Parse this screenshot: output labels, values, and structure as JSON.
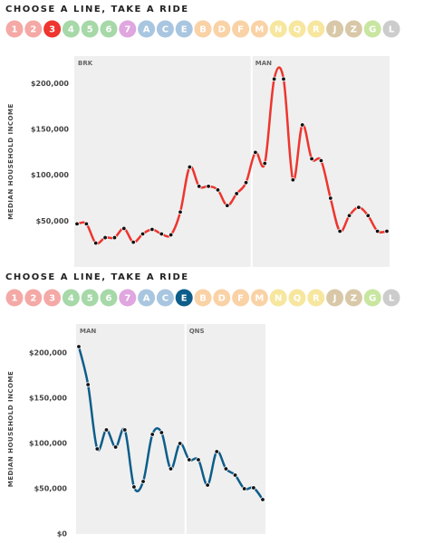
{
  "pickers": [
    {
      "title": "CHOOSE A LINE, TAKE A RIDE",
      "buttons": [
        {
          "label": "1",
          "color": "#f4a9a6"
        },
        {
          "label": "2",
          "color": "#f4a9a6"
        },
        {
          "label": "3",
          "color": "#ee352e",
          "selected": true
        },
        {
          "label": "4",
          "color": "#a6d8a8"
        },
        {
          "label": "5",
          "color": "#a6d8a8"
        },
        {
          "label": "6",
          "color": "#a6d8a8"
        },
        {
          "label": "7",
          "color": "#e0a6e0"
        },
        {
          "label": "A",
          "color": "#a9c6e0"
        },
        {
          "label": "C",
          "color": "#a9c6e0"
        },
        {
          "label": "E",
          "color": "#a9c6e0"
        },
        {
          "label": "B",
          "color": "#f9d2a6"
        },
        {
          "label": "D",
          "color": "#f9d2a6"
        },
        {
          "label": "F",
          "color": "#f9d2a6"
        },
        {
          "label": "M",
          "color": "#f9d2a6"
        },
        {
          "label": "N",
          "color": "#f7e69e"
        },
        {
          "label": "Q",
          "color": "#f7e69e"
        },
        {
          "label": "R",
          "color": "#f7e69e"
        },
        {
          "label": "J",
          "color": "#d8c8a8"
        },
        {
          "label": "Z",
          "color": "#d8c8a8"
        },
        {
          "label": "G",
          "color": "#c8e6a0"
        },
        {
          "label": "L",
          "color": "#cccccc"
        }
      ]
    },
    {
      "title": "CHOOSE A LINE, TAKE A RIDE",
      "buttons": [
        {
          "label": "1",
          "color": "#f4a9a6"
        },
        {
          "label": "2",
          "color": "#f4a9a6"
        },
        {
          "label": "3",
          "color": "#f4a9a6"
        },
        {
          "label": "4",
          "color": "#a6d8a8"
        },
        {
          "label": "5",
          "color": "#a6d8a8"
        },
        {
          "label": "6",
          "color": "#a6d8a8"
        },
        {
          "label": "7",
          "color": "#e0a6e0"
        },
        {
          "label": "A",
          "color": "#a9c6e0"
        },
        {
          "label": "C",
          "color": "#a9c6e0"
        },
        {
          "label": "E",
          "color": "#0d5d8a",
          "selected": true
        },
        {
          "label": "B",
          "color": "#f9d2a6"
        },
        {
          "label": "D",
          "color": "#f9d2a6"
        },
        {
          "label": "F",
          "color": "#f9d2a6"
        },
        {
          "label": "M",
          "color": "#f9d2a6"
        },
        {
          "label": "N",
          "color": "#f7e69e"
        },
        {
          "label": "Q",
          "color": "#f7e69e"
        },
        {
          "label": "R",
          "color": "#f7e69e"
        },
        {
          "label": "J",
          "color": "#d8c8a8"
        },
        {
          "label": "Z",
          "color": "#d8c8a8"
        },
        {
          "label": "G",
          "color": "#c8e6a0"
        },
        {
          "label": "L",
          "color": "#cccccc"
        }
      ]
    }
  ],
  "chart_data": [
    {
      "type": "line",
      "y_label": "MEDIAN HOUSEHOLD INCOME",
      "color": "#ee352e",
      "values": [
        47000,
        47000,
        26000,
        32000,
        32000,
        42000,
        27000,
        36000,
        41000,
        36000,
        35000,
        60000,
        109000,
        88000,
        88000,
        84000,
        67000,
        80000,
        92000,
        125000,
        113000,
        205000,
        205000,
        95000,
        155000,
        118000,
        116000,
        75000,
        39000,
        56000,
        65000,
        56000,
        39000,
        39000
      ],
      "sections": [
        {
          "label": "BRK",
          "start_index": 0
        },
        {
          "label": "MAN",
          "start_index": 19
        }
      ],
      "ylim": [
        0,
        230000
      ],
      "yticks": [
        {
          "value": 50000,
          "label": "$50,000"
        },
        {
          "value": 100000,
          "label": "$100,000"
        },
        {
          "value": 150000,
          "label": "$150,000"
        },
        {
          "value": 200000,
          "label": "$200,000"
        }
      ]
    },
    {
      "type": "line",
      "y_label": "MEDIAN HOUSEHOLD INCOME",
      "color": "#0d5d8a",
      "values": [
        207000,
        165000,
        94000,
        115000,
        96000,
        115000,
        52000,
        58000,
        110000,
        112000,
        72000,
        100000,
        82000,
        82000,
        54000,
        91000,
        72000,
        65000,
        50000,
        51000,
        38000
      ],
      "sections": [
        {
          "label": "MAN",
          "start_index": 0
        },
        {
          "label": "QNS",
          "start_index": 12
        }
      ],
      "ylim": [
        0,
        232000
      ],
      "yticks": [
        {
          "value": 0,
          "label": "$0"
        },
        {
          "value": 50000,
          "label": "$50,000"
        },
        {
          "value": 100000,
          "label": "$100,000"
        },
        {
          "value": 150000,
          "label": "$150,000"
        },
        {
          "value": 200000,
          "label": "$200,000"
        }
      ]
    }
  ]
}
